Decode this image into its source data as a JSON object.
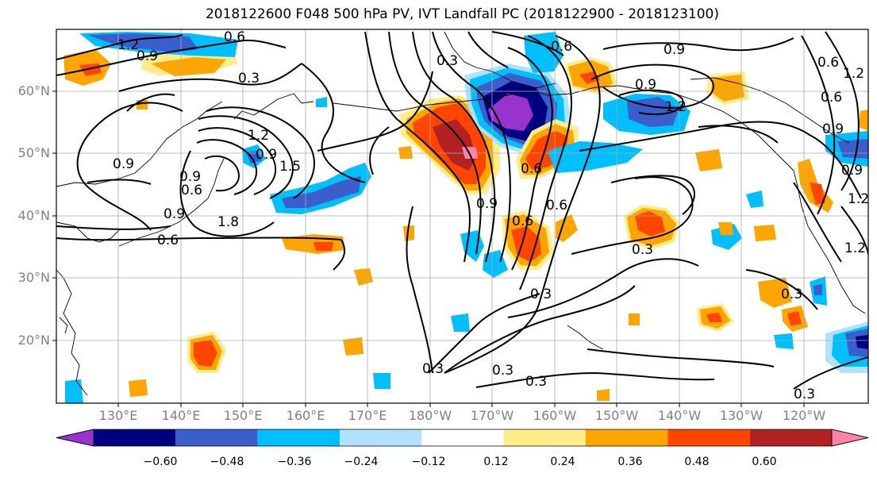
{
  "title": "2018122600 F048 500 hPa PV, IVT Landfall PC (2018122900 - 2018123100)",
  "lat_labels": [
    "60°N",
    "50°N",
    "40°N",
    "30°N",
    "20°N"
  ],
  "lon_labels": [
    "130°E",
    "140°E",
    "150°E",
    "160°E",
    "170°E",
    "180°W",
    "170°W",
    "160°W",
    "150°W",
    "140°W",
    "130°W",
    "120°W"
  ],
  "colorbar": {
    "ticks": [
      "−0.60",
      "−0.48",
      "−0.36",
      "−0.24",
      "−0.12",
      "0.12",
      "0.24",
      "0.36",
      "0.48",
      "0.60"
    ],
    "colors": [
      "#9a32cd",
      "#000080",
      "#3a5fcd",
      "#00bfff",
      "#b0e2ff",
      "#ffffff",
      "#ffec8b",
      "#ffa500",
      "#ff4500",
      "#b22222",
      "#ff82ab"
    ]
  },
  "contour_labels": [
    "1.2",
    "0.9",
    "0.6",
    "0.3",
    "0.9",
    "0.6",
    "0.9",
    "0.6",
    "0.9",
    "0.3",
    "0.6",
    "0.9",
    "1.2",
    "0.9",
    "1.8",
    "1.5",
    "0.9",
    "1.2",
    "0.6",
    "0.9",
    "0.6",
    "0.6",
    "0.3",
    "0.3",
    "0.3",
    "0.3",
    "0.3",
    "0.3",
    "0.3",
    "0.6",
    "0.9",
    "0.6",
    "0.9",
    "1.2",
    "1.2",
    "1.2"
  ]
}
